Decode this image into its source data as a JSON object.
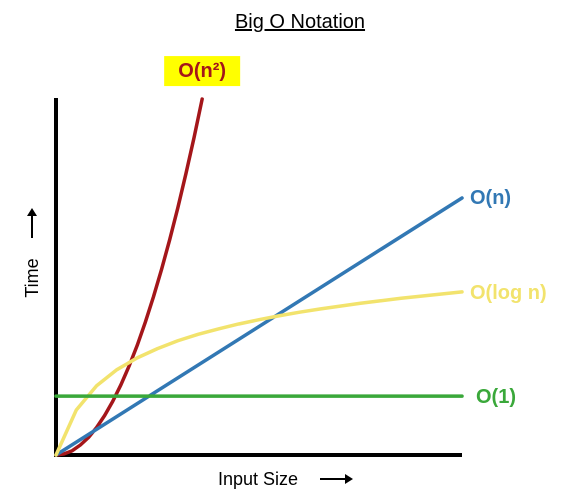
{
  "chart_data": {
    "type": "line",
    "title": "Big O Notation",
    "xlabel": "Input Size",
    "ylabel": "Time",
    "xlim": [
      0,
      10
    ],
    "ylim": [
      0,
      10
    ],
    "grid": false,
    "legend": "none",
    "x": [
      0,
      0.25,
      0.5,
      0.75,
      1,
      1.25,
      1.5,
      1.75,
      2,
      2.25,
      2.5,
      2.75,
      3,
      3.25,
      3.5,
      3.75,
      4,
      4.25,
      4.5,
      4.75,
      5,
      5.25,
      5.5,
      5.75,
      6,
      6.25,
      6.5,
      6.75,
      7,
      7.25,
      7.5,
      7.75,
      8,
      8.25,
      8.5,
      8.75,
      9,
      9.25,
      9.5,
      9.75,
      10
    ],
    "series": [
      {
        "name": "O(n²)",
        "color": "#a4161a",
        "label_bg": "#ffff00",
        "x": [
          0,
          0.2,
          0.4,
          0.6,
          0.8,
          1,
          1.2,
          1.4,
          1.6,
          1.8,
          2,
          2.2,
          2.4,
          2.6,
          2.8,
          3,
          3.2,
          3.4,
          3.6
        ],
        "values": [
          0,
          0.03,
          0.12,
          0.28,
          0.49,
          0.77,
          1.11,
          1.51,
          1.97,
          2.49,
          3.07,
          3.72,
          4.43,
          5.2,
          6.03,
          6.92,
          7.88,
          8.89,
          9.97
        ]
      },
      {
        "name": "O(n)",
        "color": "#3278b4",
        "x": [
          0,
          10
        ],
        "values": [
          0,
          7.2
        ]
      },
      {
        "name": "O(log n)",
        "color": "#f2e36d",
        "x": [
          0,
          0.5,
          1,
          1.5,
          2,
          2.5,
          3,
          3.5,
          4,
          4.5,
          5,
          5.5,
          6,
          6.5,
          7,
          7.5,
          8,
          8.5,
          9,
          9.5,
          10
        ],
        "values": [
          0,
          1.26,
          1.94,
          2.39,
          2.72,
          2.98,
          3.2,
          3.38,
          3.53,
          3.67,
          3.79,
          3.9,
          4.0,
          4.09,
          4.17,
          4.25,
          4.32,
          4.39,
          4.45,
          4.51,
          4.57
        ]
      },
      {
        "name": "O(1)",
        "color": "#3aa83a",
        "x": [
          0,
          10
        ],
        "values": [
          1.65,
          1.65
        ]
      }
    ]
  }
}
